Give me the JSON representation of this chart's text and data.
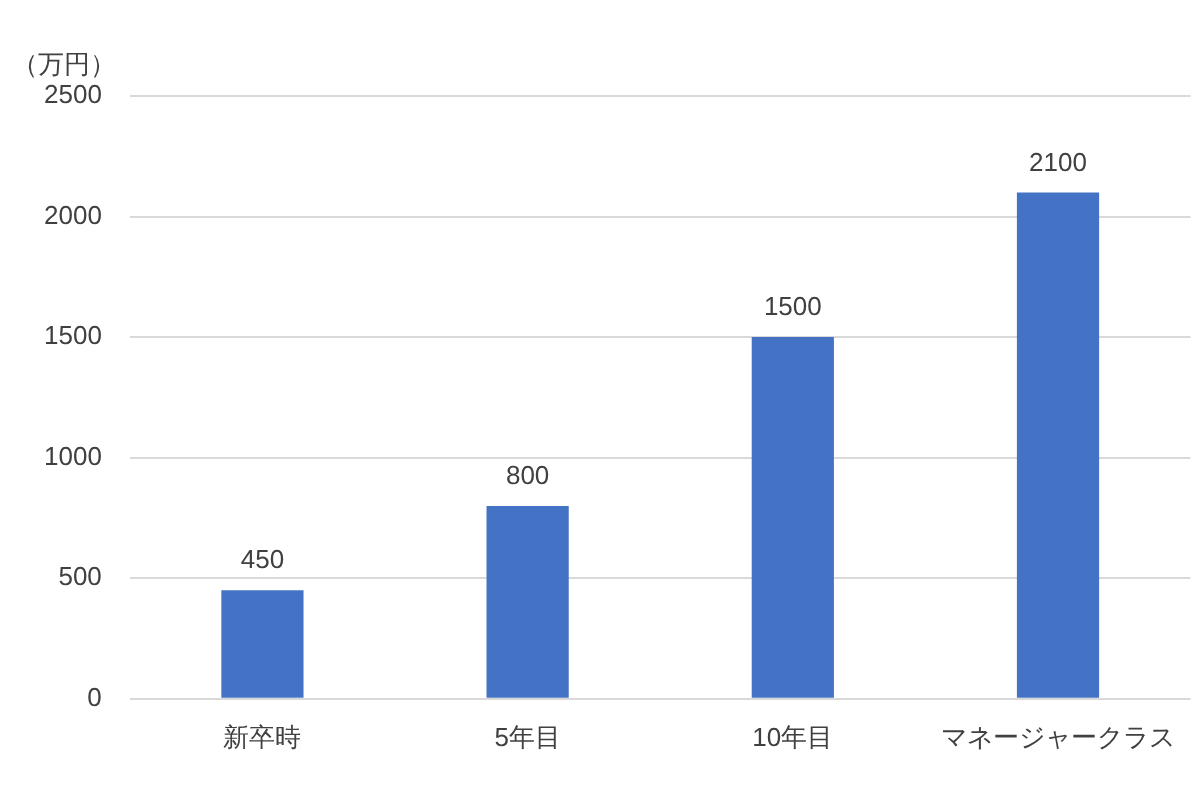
{
  "chart_data": {
    "type": "bar",
    "ylabel": "（万円）",
    "categories": [
      "新卒時",
      "5年目",
      "10年目",
      "マネージャークラス"
    ],
    "values": [
      450,
      800,
      1500,
      2100
    ],
    "color": "#4472c4",
    "ylim": [
      0,
      2500
    ],
    "yticks": [
      0,
      500,
      1000,
      1500,
      2000,
      2500
    ],
    "grid": "y",
    "data_labels": true,
    "legend": false
  }
}
